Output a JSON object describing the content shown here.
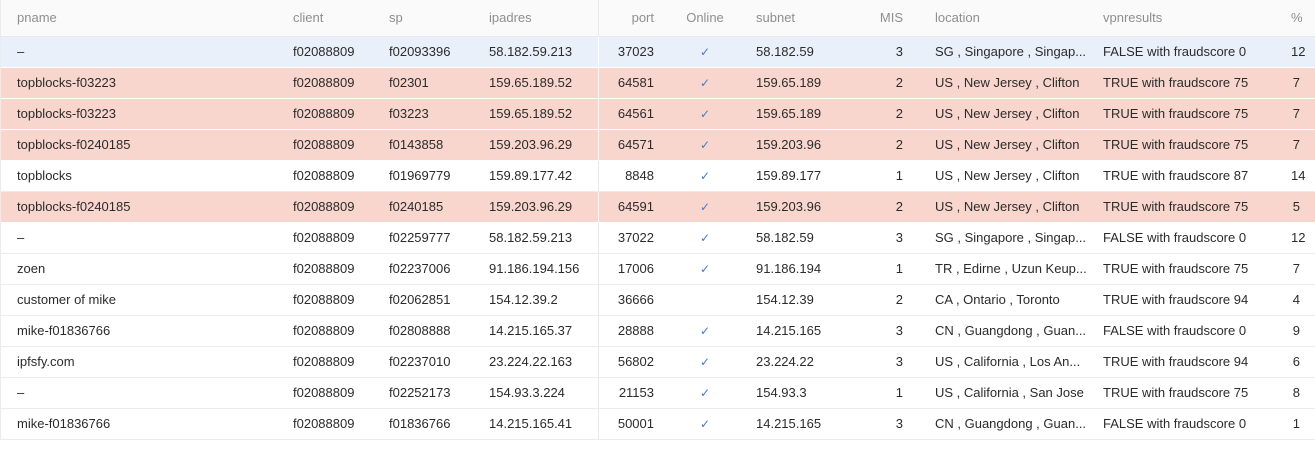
{
  "table": {
    "columns": [
      {
        "key": "pname",
        "label": "pname"
      },
      {
        "key": "client",
        "label": "client"
      },
      {
        "key": "sp",
        "label": "sp"
      },
      {
        "key": "ipadres",
        "label": "ipadres"
      },
      {
        "key": "port",
        "label": "port"
      },
      {
        "key": "online",
        "label": "Online"
      },
      {
        "key": "subnet",
        "label": "subnet"
      },
      {
        "key": "mis",
        "label": "MIS"
      },
      {
        "key": "location",
        "label": "location"
      },
      {
        "key": "vpnresults",
        "label": "vpnresults"
      },
      {
        "key": "pct",
        "label": "%"
      }
    ],
    "rows": [
      {
        "pname": "–",
        "client": "f02088809",
        "sp": "f02093396",
        "ipadres": "58.182.59.213",
        "port": "37023",
        "online": true,
        "subnet": "58.182.59",
        "mis": "3",
        "location": "SG , Singapore , Singap...",
        "vpnresults": "FALSE with fraudscore 0",
        "pct": "12",
        "highlight": "blue"
      },
      {
        "pname": "topblocks-f03223",
        "client": "f02088809",
        "sp": "f02301",
        "ipadres": "159.65.189.52",
        "port": "64581",
        "online": true,
        "subnet": "159.65.189",
        "mis": "2",
        "location": "US , New Jersey , Clifton",
        "vpnresults": "TRUE with fraudscore 75",
        "pct": "7",
        "highlight": "pink"
      },
      {
        "pname": "topblocks-f03223",
        "client": "f02088809",
        "sp": "f03223",
        "ipadres": "159.65.189.52",
        "port": "64561",
        "online": true,
        "subnet": "159.65.189",
        "mis": "2",
        "location": "US , New Jersey , Clifton",
        "vpnresults": "TRUE with fraudscore 75",
        "pct": "7",
        "highlight": "pink"
      },
      {
        "pname": "topblocks-f0240185",
        "client": "f02088809",
        "sp": "f0143858",
        "ipadres": "159.203.96.29",
        "port": "64571",
        "online": true,
        "subnet": "159.203.96",
        "mis": "2",
        "location": "US , New Jersey , Clifton",
        "vpnresults": "TRUE with fraudscore 75",
        "pct": "7",
        "highlight": "pink"
      },
      {
        "pname": "topblocks",
        "client": "f02088809",
        "sp": "f01969779",
        "ipadres": "159.89.177.42",
        "port": "8848",
        "online": true,
        "subnet": "159.89.177",
        "mis": "1",
        "location": "US , New Jersey , Clifton",
        "vpnresults": "TRUE with fraudscore 87",
        "pct": "14",
        "highlight": "none"
      },
      {
        "pname": "topblocks-f0240185",
        "client": "f02088809",
        "sp": "f0240185",
        "ipadres": "159.203.96.29",
        "port": "64591",
        "online": true,
        "subnet": "159.203.96",
        "mis": "2",
        "location": "US , New Jersey , Clifton",
        "vpnresults": "TRUE with fraudscore 75",
        "pct": "5",
        "highlight": "pink"
      },
      {
        "pname": "–",
        "client": "f02088809",
        "sp": "f02259777",
        "ipadres": "58.182.59.213",
        "port": "37022",
        "online": true,
        "subnet": "58.182.59",
        "mis": "3",
        "location": "SG , Singapore , Singap...",
        "vpnresults": "FALSE with fraudscore 0",
        "pct": "12",
        "highlight": "none"
      },
      {
        "pname": "zoen",
        "client": "f02088809",
        "sp": "f02237006",
        "ipadres": "91.186.194.156",
        "port": "17006",
        "online": true,
        "subnet": "91.186.194",
        "mis": "1",
        "location": "TR , Edirne , Uzun Keup...",
        "vpnresults": "TRUE with fraudscore 75",
        "pct": "7",
        "highlight": "none"
      },
      {
        "pname": "customer of mike",
        "client": "f02088809",
        "sp": "f02062851",
        "ipadres": "154.12.39.2",
        "port": "36666",
        "online": false,
        "subnet": "154.12.39",
        "mis": "2",
        "location": "CA , Ontario , Toronto",
        "vpnresults": "TRUE with fraudscore 94",
        "pct": "4",
        "highlight": "none"
      },
      {
        "pname": "mike-f01836766",
        "client": "f02088809",
        "sp": "f02808888",
        "ipadres": "14.215.165.37",
        "port": "28888",
        "online": true,
        "subnet": "14.215.165",
        "mis": "3",
        "location": "CN , Guangdong , Guan...",
        "vpnresults": "FALSE with fraudscore 0",
        "pct": "9",
        "highlight": "none"
      },
      {
        "pname": "ipfsfy.com",
        "client": "f02088809",
        "sp": "f02237010",
        "ipadres": "23.224.22.163",
        "port": "56802",
        "online": true,
        "subnet": "23.224.22",
        "mis": "3",
        "location": "US , California , Los An...",
        "vpnresults": "TRUE with fraudscore 94",
        "pct": "6",
        "highlight": "none"
      },
      {
        "pname": "–",
        "client": "f02088809",
        "sp": "f02252173",
        "ipadres": "154.93.3.224",
        "port": "21153",
        "online": true,
        "subnet": "154.93.3",
        "mis": "1",
        "location": "US , California , San Jose",
        "vpnresults": "TRUE with fraudscore 75",
        "pct": "8",
        "highlight": "none"
      },
      {
        "pname": "mike-f01836766",
        "client": "f02088809",
        "sp": "f01836766",
        "ipadres": "14.215.165.41",
        "port": "50001",
        "online": true,
        "subnet": "14.215.165",
        "mis": "3",
        "location": "CN , Guangdong , Guan...",
        "vpnresults": "FALSE with fraudscore 0",
        "pct": "1",
        "highlight": "none"
      }
    ]
  },
  "icons": {
    "online_check_icon": "✓"
  },
  "colors": {
    "header_bg": "#fafafa",
    "header_text": "#8e8e8e",
    "body_text": "#2b2b2b",
    "selected_row_bg": "#e9f0fa",
    "flagged_row_bg": "#f8d6ce",
    "online_check": "#4678d4",
    "border": "#e9e9e9"
  }
}
